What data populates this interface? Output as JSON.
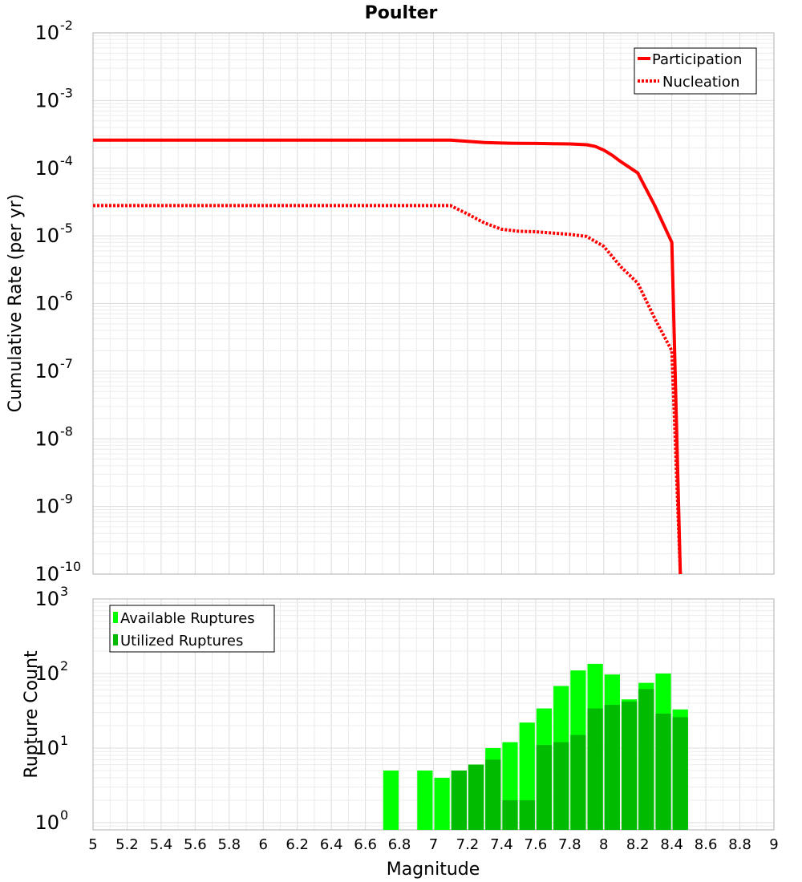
{
  "chart_data": [
    {
      "type": "line",
      "title": "Poulter",
      "xlabel": "",
      "ylabel": "Cumulative Rate (per yr)",
      "xscale": "linear",
      "yscale": "log",
      "xlim": [
        5,
        9
      ],
      "ylim": [
        1e-10,
        0.01
      ],
      "grid": true,
      "legend_position": "top-right",
      "y_ticks": [
        {
          "base": "10",
          "exp": "-10"
        },
        {
          "base": "10",
          "exp": "-9"
        },
        {
          "base": "10",
          "exp": "-8"
        },
        {
          "base": "10",
          "exp": "-7"
        },
        {
          "base": "10",
          "exp": "-6"
        },
        {
          "base": "10",
          "exp": "-5"
        },
        {
          "base": "10",
          "exp": "-4"
        },
        {
          "base": "10",
          "exp": "-3"
        },
        {
          "base": "10",
          "exp": "-2"
        }
      ],
      "series": [
        {
          "name": "Participation",
          "color": "#ff0000",
          "style": "solid",
          "x": [
            5.0,
            5.5,
            6.0,
            6.5,
            7.0,
            7.1,
            7.2,
            7.3,
            7.4,
            7.5,
            7.6,
            7.7,
            7.8,
            7.85,
            7.9,
            7.95,
            8.0,
            8.05,
            8.1,
            8.2,
            8.3,
            8.4,
            8.45
          ],
          "y": [
            0.00026,
            0.00026,
            0.00026,
            0.00026,
            0.00026,
            0.00026,
            0.00025,
            0.00024,
            0.000235,
            0.000233,
            0.000232,
            0.00023,
            0.000228,
            0.000225,
            0.000222,
            0.00021,
            0.000185,
            0.000155,
            0.000125,
            8.5e-05,
            2.8e-05,
            8e-06,
            1e-10
          ]
        },
        {
          "name": "Nucleation",
          "color": "#ff0000",
          "style": "dotted",
          "x": [
            5.0,
            5.5,
            6.0,
            6.5,
            7.0,
            7.1,
            7.2,
            7.3,
            7.4,
            7.5,
            7.6,
            7.7,
            7.8,
            7.9,
            8.0,
            8.1,
            8.2,
            8.3,
            8.4,
            8.45
          ],
          "y": [
            2.8e-05,
            2.8e-05,
            2.8e-05,
            2.8e-05,
            2.8e-05,
            2.8e-05,
            2.1e-05,
            1.55e-05,
            1.25e-05,
            1.17e-05,
            1.15e-05,
            1.1e-05,
            1.05e-05,
            9.8e-06,
            7e-06,
            3.5e-06,
            2e-06,
            6e-07,
            2e-07,
            1e-10
          ]
        }
      ]
    },
    {
      "type": "bar",
      "title": "",
      "xlabel": "Magnitude",
      "ylabel": "Rupture Count",
      "xscale": "linear",
      "yscale": "log",
      "xlim": [
        5,
        9
      ],
      "ylim": [
        0.8,
        1000
      ],
      "grid": true,
      "legend_position": "top-left",
      "x_ticks": [
        "5",
        "5.2",
        "5.4",
        "5.6",
        "5.8",
        "6",
        "6.2",
        "6.4",
        "6.6",
        "6.8",
        "7",
        "7.2",
        "7.4",
        "7.6",
        "7.8",
        "8",
        "8.2",
        "8.4",
        "8.6",
        "8.8",
        "9"
      ],
      "y_ticks": [
        {
          "base": "10",
          "exp": "0"
        },
        {
          "base": "10",
          "exp": "1"
        },
        {
          "base": "10",
          "exp": "2"
        },
        {
          "base": "10",
          "exp": "3"
        }
      ],
      "bin_centers": [
        6.75,
        6.95,
        7.05,
        7.15,
        7.25,
        7.35,
        7.45,
        7.55,
        7.65,
        7.75,
        7.85,
        7.95,
        8.05,
        8.15,
        8.25,
        8.35,
        8.45
      ],
      "bin_width": 0.1,
      "series": [
        {
          "name": "Available Ruptures",
          "color": "#00ff00",
          "values": [
            5,
            5,
            4,
            5,
            6,
            10,
            12,
            22,
            34,
            68,
            110,
            135,
            97,
            45,
            75,
            100,
            33
          ]
        },
        {
          "name": "Utilized Ruptures",
          "color": "#00bb00",
          "values": [
            0,
            0,
            0,
            5,
            6,
            7,
            2,
            2,
            11,
            12,
            15,
            34,
            38,
            42,
            62,
            29,
            26
          ]
        }
      ]
    }
  ]
}
